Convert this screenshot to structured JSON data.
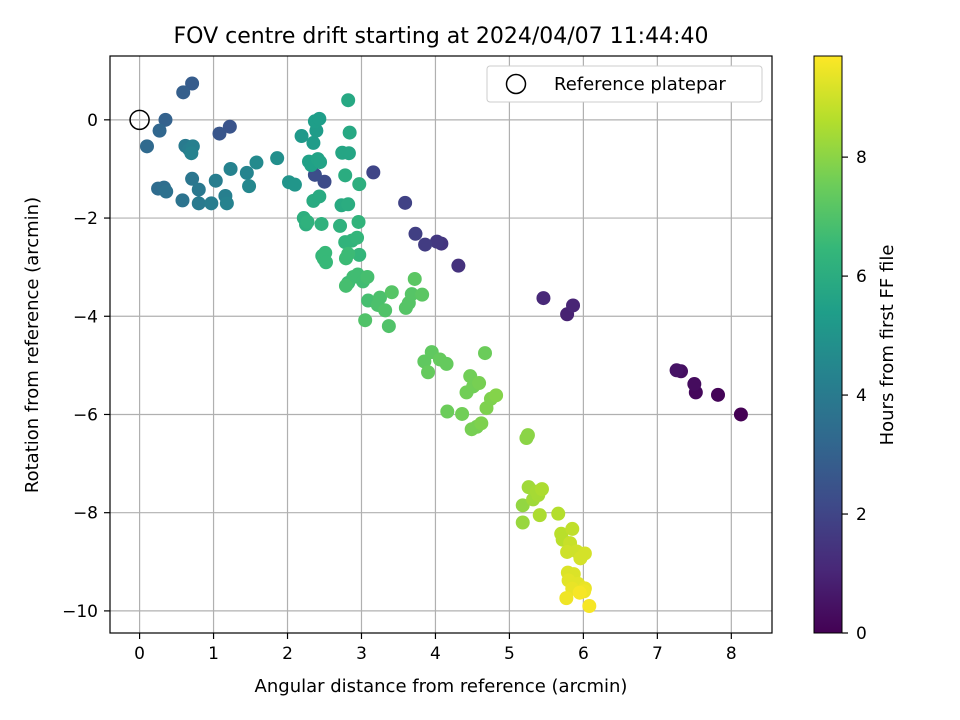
{
  "chart_data": {
    "type": "scatter",
    "title": "FOV centre drift starting at 2024/04/07 11:44:40",
    "xlabel": "Angular distance from reference (arcmin)",
    "ylabel": "Rotation from reference (arcmin)",
    "xlim": [
      -0.4,
      8.55
    ],
    "ylim": [
      -10.45,
      1.3
    ],
    "xticks": [
      0,
      1,
      2,
      3,
      4,
      5,
      6,
      7,
      8
    ],
    "yticks": [
      0,
      -2,
      -4,
      -6,
      -8,
      -10
    ],
    "xtick_labels": [
      "0",
      "1",
      "2",
      "3",
      "4",
      "5",
      "6",
      "7",
      "8"
    ],
    "ytick_labels": [
      "0",
      "−2",
      "−4",
      "−6",
      "−8",
      "−10"
    ],
    "grid": true,
    "legend": {
      "position": "top-right",
      "entries": [
        {
          "label": "Reference platepar",
          "marker": "open-circle",
          "color": "#000000"
        }
      ]
    },
    "reference_point": {
      "x": 0.0,
      "y": 0.0
    },
    "colorbar": {
      "label": "Hours from first FF file",
      "range": [
        0,
        9.7
      ],
      "ticks": [
        0,
        2,
        4,
        6,
        8
      ],
      "tick_labels": [
        "0",
        "2",
        "4",
        "6",
        "8"
      ],
      "colormap": "viridis"
    },
    "points": [
      [
        8.13,
        -6.0,
        0.0
      ],
      [
        7.82,
        -5.6,
        0.1
      ],
      [
        7.52,
        -5.55,
        0.2
      ],
      [
        7.5,
        -5.38,
        0.3
      ],
      [
        7.32,
        -5.12,
        0.4
      ],
      [
        7.26,
        -5.1,
        0.5
      ],
      [
        5.78,
        -3.96,
        0.9
      ],
      [
        5.86,
        -3.78,
        1.0
      ],
      [
        5.46,
        -3.63,
        1.1
      ],
      [
        4.31,
        -2.97,
        1.4
      ],
      [
        4.08,
        -2.52,
        1.5
      ],
      [
        4.02,
        -2.48,
        1.6
      ],
      [
        3.86,
        -2.54,
        1.7
      ],
      [
        3.73,
        -2.32,
        1.8
      ],
      [
        3.59,
        -1.69,
        1.9
      ],
      [
        3.16,
        -1.07,
        2.0
      ],
      [
        2.5,
        -1.26,
        2.2
      ],
      [
        2.37,
        -1.12,
        2.3
      ],
      [
        1.22,
        -0.14,
        2.5
      ],
      [
        1.08,
        -0.28,
        2.6
      ],
      [
        0.71,
        0.74,
        2.8
      ],
      [
        0.59,
        0.56,
        2.9
      ],
      [
        0.35,
        0.0,
        3.0
      ],
      [
        0.27,
        -0.22,
        3.2
      ],
      [
        0.1,
        -0.54,
        3.3
      ],
      [
        0.25,
        -1.4,
        3.4
      ],
      [
        0.33,
        -1.38,
        3.5
      ],
      [
        0.36,
        -1.46,
        3.6
      ],
      [
        0.58,
        -1.64,
        3.7
      ],
      [
        0.71,
        -1.2,
        3.8
      ],
      [
        0.8,
        -1.42,
        3.9
      ],
      [
        0.8,
        -1.7,
        4.0
      ],
      [
        0.97,
        -1.7,
        4.1
      ],
      [
        1.03,
        -1.24,
        4.1
      ],
      [
        1.16,
        -1.55,
        4.2
      ],
      [
        1.18,
        -1.7,
        4.3
      ],
      [
        1.23,
        -1.0,
        4.3
      ],
      [
        1.45,
        -1.08,
        4.4
      ],
      [
        1.48,
        -1.35,
        4.5
      ],
      [
        1.58,
        -0.87,
        4.6
      ],
      [
        0.62,
        -0.53,
        4.0
      ],
      [
        0.67,
        -0.6,
        4.1
      ],
      [
        0.72,
        -0.54,
        4.2
      ],
      [
        0.7,
        -0.68,
        4.3
      ],
      [
        1.86,
        -0.78,
        4.8
      ],
      [
        2.02,
        -1.27,
        5.0
      ],
      [
        2.1,
        -1.32,
        5.1
      ],
      [
        2.19,
        -0.33,
        5.2
      ],
      [
        2.35,
        -0.47,
        5.3
      ],
      [
        2.39,
        -0.22,
        5.3
      ],
      [
        2.37,
        -0.03,
        5.4
      ],
      [
        2.43,
        0.02,
        5.4
      ],
      [
        2.29,
        -0.85,
        5.5
      ],
      [
        2.32,
        -0.92,
        5.5
      ],
      [
        2.41,
        -0.8,
        5.6
      ],
      [
        2.44,
        -0.86,
        5.6
      ],
      [
        2.74,
        -0.67,
        5.7
      ],
      [
        2.83,
        -0.68,
        5.7
      ],
      [
        2.84,
        -0.26,
        5.8
      ],
      [
        2.82,
        0.4,
        5.8
      ],
      [
        2.35,
        -1.65,
        5.9
      ],
      [
        2.43,
        -1.56,
        5.9
      ],
      [
        2.73,
        -1.74,
        5.9
      ],
      [
        2.82,
        -1.72,
        6.0
      ],
      [
        2.78,
        -1.13,
        6.0
      ],
      [
        2.97,
        -1.31,
        6.1
      ],
      [
        2.22,
        -2.0,
        6.1
      ],
      [
        2.25,
        -2.13,
        6.1
      ],
      [
        2.27,
        -2.08,
        6.2
      ],
      [
        2.46,
        -2.12,
        6.2
      ],
      [
        2.71,
        -2.16,
        6.2
      ],
      [
        2.96,
        -2.08,
        6.3
      ],
      [
        2.78,
        -2.49,
        6.3
      ],
      [
        2.87,
        -2.46,
        6.3
      ],
      [
        2.94,
        -2.4,
        6.4
      ],
      [
        2.97,
        -2.75,
        6.4
      ],
      [
        2.47,
        -2.77,
        6.4
      ],
      [
        2.49,
        -2.83,
        6.5
      ],
      [
        2.51,
        -2.71,
        6.5
      ],
      [
        2.52,
        -2.9,
        6.5
      ],
      [
        2.82,
        -2.73,
        6.6
      ],
      [
        2.79,
        -2.82,
        6.6
      ],
      [
        2.82,
        -3.32,
        6.6
      ],
      [
        2.89,
        -3.2,
        6.7
      ],
      [
        2.95,
        -3.15,
        6.7
      ],
      [
        3.02,
        -3.29,
        6.7
      ],
      [
        3.08,
        -3.2,
        6.8
      ],
      [
        2.79,
        -3.38,
        6.8
      ],
      [
        3.09,
        -3.68,
        6.8
      ],
      [
        3.25,
        -3.62,
        6.9
      ],
      [
        3.22,
        -3.77,
        6.9
      ],
      [
        3.32,
        -3.88,
        7.0
      ],
      [
        3.05,
        -4.08,
        7.0
      ],
      [
        3.37,
        -4.2,
        7.0
      ],
      [
        3.41,
        -3.51,
        7.1
      ],
      [
        3.6,
        -3.83,
        7.1
      ],
      [
        3.64,
        -3.73,
        7.1
      ],
      [
        3.68,
        -3.55,
        7.1
      ],
      [
        3.72,
        -3.24,
        7.2
      ],
      [
        3.82,
        -3.56,
        7.2
      ],
      [
        3.85,
        -4.92,
        7.3
      ],
      [
        3.95,
        -4.73,
        7.3
      ],
      [
        3.9,
        -5.14,
        7.4
      ],
      [
        4.06,
        -4.88,
        7.4
      ],
      [
        4.15,
        -4.97,
        7.4
      ],
      [
        4.67,
        -4.75,
        7.5
      ],
      [
        4.16,
        -5.94,
        7.5
      ],
      [
        4.36,
        -5.99,
        7.6
      ],
      [
        4.42,
        -5.55,
        7.6
      ],
      [
        4.51,
        -5.43,
        7.6
      ],
      [
        4.47,
        -5.22,
        7.6
      ],
      [
        4.59,
        -5.36,
        7.7
      ],
      [
        4.49,
        -6.3,
        7.7
      ],
      [
        4.56,
        -6.25,
        7.7
      ],
      [
        4.62,
        -6.18,
        7.8
      ],
      [
        4.69,
        -5.87,
        7.8
      ],
      [
        4.75,
        -5.68,
        7.8
      ],
      [
        4.82,
        -5.61,
        7.9
      ],
      [
        5.25,
        -6.42,
        8.0
      ],
      [
        5.23,
        -6.48,
        8.0
      ],
      [
        5.18,
        -7.85,
        8.1
      ],
      [
        5.18,
        -8.2,
        8.2
      ],
      [
        5.26,
        -7.48,
        8.3
      ],
      [
        5.32,
        -7.73,
        8.3
      ],
      [
        5.39,
        -7.64,
        8.4
      ],
      [
        5.37,
        -7.57,
        8.4
      ],
      [
        5.41,
        -8.05,
        8.5
      ],
      [
        5.44,
        -7.52,
        8.5
      ],
      [
        5.66,
        -8.02,
        8.6
      ],
      [
        5.7,
        -8.43,
        8.7
      ],
      [
        5.72,
        -8.55,
        8.7
      ],
      [
        5.85,
        -8.33,
        8.8
      ],
      [
        5.82,
        -8.62,
        8.9
      ],
      [
        5.91,
        -8.79,
        9.0
      ],
      [
        5.78,
        -8.8,
        9.0
      ],
      [
        6.02,
        -8.83,
        9.1
      ],
      [
        5.96,
        -8.93,
        9.1
      ],
      [
        5.79,
        -9.22,
        9.2
      ],
      [
        5.87,
        -9.25,
        9.2
      ],
      [
        5.8,
        -9.38,
        9.3
      ],
      [
        5.93,
        -9.45,
        9.3
      ],
      [
        6.02,
        -9.54,
        9.4
      ],
      [
        5.85,
        -9.55,
        9.4
      ],
      [
        6.01,
        -9.6,
        9.5
      ],
      [
        5.77,
        -9.74,
        9.5
      ],
      [
        6.08,
        -9.9,
        9.6
      ],
      [
        5.95,
        -9.63,
        9.6
      ]
    ]
  }
}
